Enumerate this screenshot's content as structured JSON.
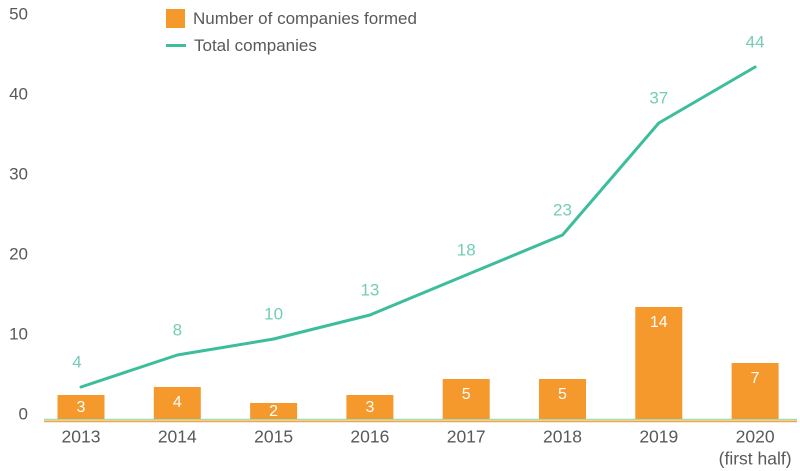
{
  "chart_data": {
    "type": "bar+line",
    "categories": [
      "2013",
      "2014",
      "2015",
      "2016",
      "2017",
      "2018",
      "2019",
      "2020"
    ],
    "category_sublabels": [
      "",
      "",
      "",
      "",
      "",
      "",
      "",
      "(first half)"
    ],
    "series": [
      {
        "name": "Number of companies formed",
        "type": "bar",
        "color": "#F5992D",
        "values": [
          3,
          4,
          2,
          3,
          5,
          5,
          14,
          7
        ],
        "value_label_color": "#FFFFFF"
      },
      {
        "name": "Total companies",
        "type": "line",
        "color": "#3CBD9B",
        "values": [
          4,
          8,
          10,
          13,
          18,
          23,
          37,
          44
        ],
        "value_label_color": "#74CDB6"
      }
    ],
    "ylim": [
      0,
      50
    ],
    "yticks": [
      0,
      10,
      20,
      30,
      40,
      50
    ],
    "grid": false,
    "legend_position": "top",
    "tick_label_color": "#58595B",
    "baseline_colors": {
      "green_line": "#A6DAB4",
      "orange_line": "#F5A53C"
    }
  }
}
